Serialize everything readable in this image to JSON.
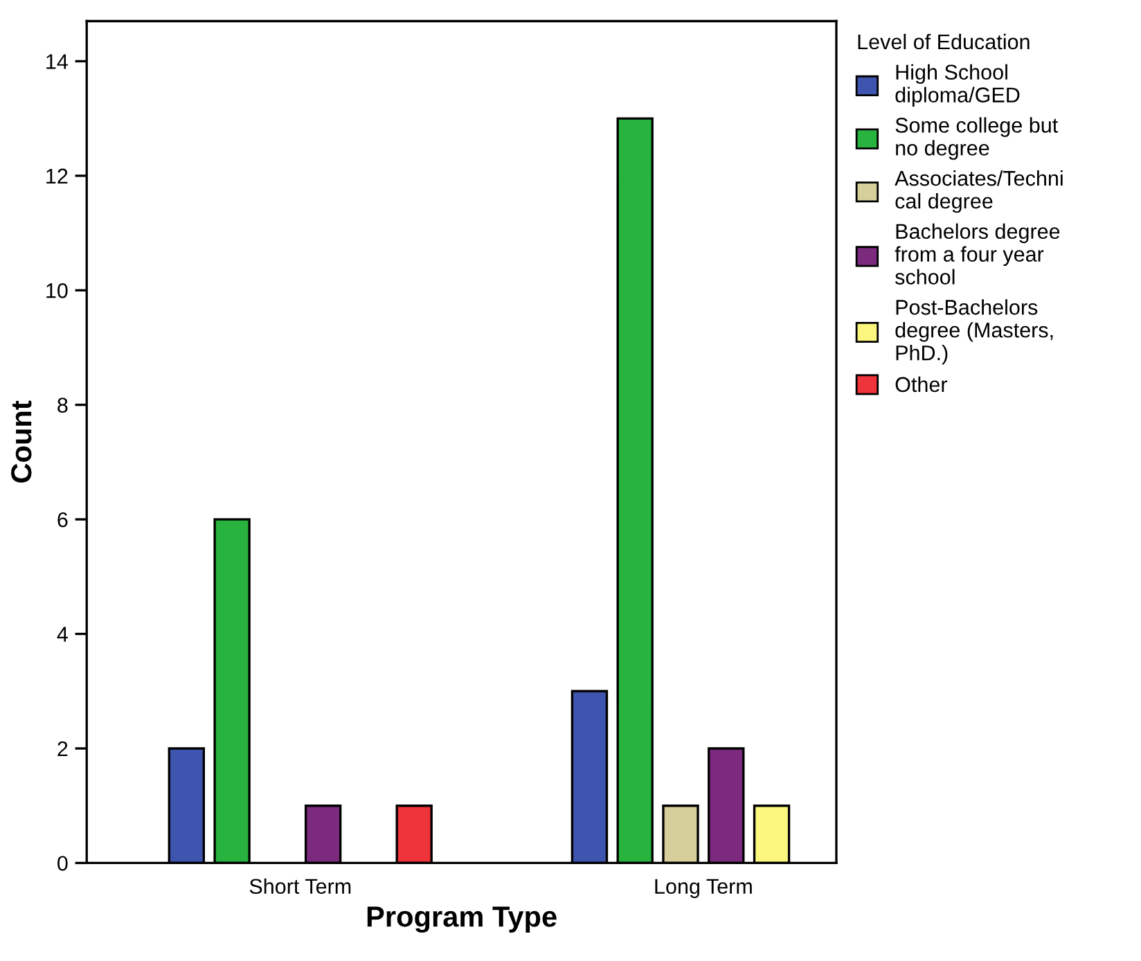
{
  "chart_data": {
    "type": "bar",
    "xlabel": "Program Type",
    "ylabel": "Count",
    "legend_title": "Level of Education",
    "categories": [
      "Short Term",
      "Long Term"
    ],
    "series": [
      {
        "name": "High School\ndiploma/GED",
        "color": "#3f54ae",
        "values": [
          2,
          3
        ]
      },
      {
        "name": "Some college but\nno degree",
        "color": "#28b33f",
        "values": [
          6,
          13
        ]
      },
      {
        "name": "Associates/Techni\ncal degree",
        "color": "#d6cf9c",
        "values": [
          0,
          1
        ]
      },
      {
        "name": "Bachelors degree\nfrom a four year\nschool",
        "color": "#7b2a7d",
        "values": [
          1,
          2
        ]
      },
      {
        "name": "Post-Bachelors\ndegree (Masters,\nPhD.)",
        "color": "#fbf77e",
        "values": [
          0,
          1
        ]
      },
      {
        "name": "Other",
        "color": "#ee333a",
        "values": [
          1,
          0
        ]
      }
    ],
    "ylim": [
      0,
      14.7
    ],
    "yticks": [
      0,
      2,
      4,
      6,
      8,
      10,
      12,
      14
    ],
    "grid": false,
    "legend": "right"
  }
}
